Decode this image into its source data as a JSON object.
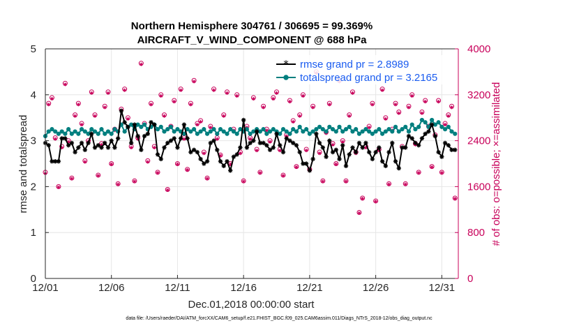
{
  "chart_data": {
    "type": "line",
    "title_line1": "Northern Hemisphere 304761 / 306695 = 99.369%",
    "title_line2": "AIRCRAFT_V_WIND_COMPONENT @ 688 hPa",
    "xlabel": "Dec.01,2018 00:00:00 start",
    "ylabel_left": "rmse and totalspread",
    "ylabel_right": "# of obs: o=possible; ×=assimilated",
    "footnote": "data file: /Users/raeder/DAI/ATM_forcXX/CAM6_setup/f.e21.FHIST_BGC.f09_025.CAM6assim.011/Diags_NTrS_2018-12/obs_diag_output.nc",
    "x_ticks": [
      "12/01",
      "12/06",
      "12/11",
      "12/16",
      "12/21",
      "12/26",
      "12/31"
    ],
    "x_tick_values": [
      0,
      5,
      10,
      15,
      20,
      25,
      30
    ],
    "xlim": [
      0,
      31.25
    ],
    "ylim_left": [
      0,
      5
    ],
    "y_ticks_left": [
      "0",
      "1",
      "2",
      "3",
      "4",
      "5"
    ],
    "ylim_right": [
      0,
      4000
    ],
    "y_ticks_right": [
      "0",
      "800",
      "1600",
      "2400",
      "3200",
      "4000"
    ],
    "grid": true,
    "legend": {
      "position": "top-right",
      "entries": [
        "rmse grand pr = 2.8989",
        "totalspread grand pr = 3.2165"
      ]
    },
    "colors": {
      "rmse": "#000000",
      "spread": "#007f7f",
      "obs": "#c8005a",
      "legend_text": "#1a5cf0"
    },
    "series": [
      {
        "name": "rmse",
        "x": [
          0.0,
          0.25,
          0.5,
          0.75,
          1.0,
          1.25,
          1.5,
          1.75,
          2.0,
          2.25,
          2.5,
          2.75,
          3.0,
          3.25,
          3.5,
          3.75,
          4.0,
          4.25,
          4.5,
          4.75,
          5.0,
          5.25,
          5.5,
          5.75,
          6.0,
          6.25,
          6.5,
          6.75,
          7.0,
          7.25,
          7.5,
          7.75,
          8.0,
          8.25,
          8.5,
          8.75,
          9.0,
          9.25,
          9.5,
          9.75,
          10.0,
          10.25,
          10.5,
          10.75,
          11.0,
          11.25,
          11.5,
          11.75,
          12.0,
          12.25,
          12.5,
          12.75,
          13.0,
          13.25,
          13.5,
          13.75,
          14.0,
          14.25,
          14.5,
          14.75,
          15.0,
          15.25,
          15.5,
          15.75,
          16.0,
          16.25,
          16.5,
          16.75,
          17.0,
          17.25,
          17.5,
          17.75,
          18.0,
          18.25,
          18.5,
          18.75,
          19.0,
          19.25,
          19.5,
          19.75,
          20.0,
          20.25,
          20.5,
          20.75,
          21.0,
          21.25,
          21.5,
          21.75,
          22.0,
          22.25,
          22.5,
          22.75,
          23.0,
          23.25,
          23.5,
          23.75,
          24.0,
          24.25,
          24.5,
          24.75,
          25.0,
          25.25,
          25.5,
          25.75,
          26.0,
          26.25,
          26.5,
          26.75,
          27.0,
          27.25,
          27.5,
          27.75,
          28.0,
          28.25,
          28.5,
          28.75,
          29.0,
          29.25,
          29.5,
          29.75,
          30.0,
          30.25,
          30.5,
          30.75,
          31.0
        ],
        "values": [
          2.95,
          2.9,
          2.55,
          2.55,
          2.55,
          3.05,
          3.05,
          2.9,
          2.95,
          2.75,
          2.85,
          2.95,
          2.8,
          2.95,
          3.15,
          2.85,
          2.9,
          2.85,
          2.95,
          2.85,
          3.0,
          2.85,
          3.05,
          3.65,
          3.4,
          3.3,
          2.95,
          3.35,
          3.1,
          2.8,
          3.1,
          3.15,
          3.4,
          3.35,
          2.7,
          2.6,
          2.85,
          2.95,
          3.0,
          3.05,
          2.85,
          3.05,
          3.35,
          3.05,
          2.75,
          2.8,
          2.75,
          2.6,
          2.5,
          2.55,
          2.95,
          3.0,
          2.8,
          2.55,
          2.45,
          2.55,
          2.35,
          2.65,
          2.7,
          2.85,
          3.45,
          2.85,
          2.95,
          3.0,
          3.2,
          2.95,
          2.95,
          2.9,
          2.8,
          2.85,
          3.15,
          2.9,
          2.75,
          3.05,
          3.0,
          2.95,
          2.9,
          2.75,
          2.5,
          2.5,
          2.35,
          2.6,
          3.15,
          2.95,
          2.85,
          2.65,
          3.0,
          2.75,
          2.8,
          2.6,
          2.9,
          2.45,
          2.7,
          2.85,
          2.75,
          2.95,
          2.85,
          2.95,
          2.75,
          2.6,
          2.75,
          2.85,
          2.55,
          2.45,
          2.75,
          2.95,
          2.55,
          2.4,
          2.85,
          2.85,
          3.1,
          3.05,
          2.95,
          2.9,
          3.05,
          3.15,
          3.2,
          3.35,
          3.1,
          2.75,
          2.65,
          2.95,
          2.9,
          2.8,
          2.8
        ],
        "marker": "*"
      },
      {
        "name": "totalspread",
        "x": [
          0.0,
          0.25,
          0.5,
          0.75,
          1.0,
          1.25,
          1.5,
          1.75,
          2.0,
          2.25,
          2.5,
          2.75,
          3.0,
          3.25,
          3.5,
          3.75,
          4.0,
          4.25,
          4.5,
          4.75,
          5.0,
          5.25,
          5.5,
          5.75,
          6.0,
          6.25,
          6.5,
          6.75,
          7.0,
          7.25,
          7.5,
          7.75,
          8.0,
          8.25,
          8.5,
          8.75,
          9.0,
          9.25,
          9.5,
          9.75,
          10.0,
          10.25,
          10.5,
          10.75,
          11.0,
          11.25,
          11.5,
          11.75,
          12.0,
          12.25,
          12.5,
          12.75,
          13.0,
          13.25,
          13.5,
          13.75,
          14.0,
          14.25,
          14.5,
          14.75,
          15.0,
          15.25,
          15.5,
          15.75,
          16.0,
          16.25,
          16.5,
          16.75,
          17.0,
          17.25,
          17.5,
          17.75,
          18.0,
          18.25,
          18.5,
          18.75,
          19.0,
          19.25,
          19.5,
          19.75,
          20.0,
          20.25,
          20.5,
          20.75,
          21.0,
          21.25,
          21.5,
          21.75,
          22.0,
          22.25,
          22.5,
          22.75,
          23.0,
          23.25,
          23.5,
          23.75,
          24.0,
          24.25,
          24.5,
          24.75,
          25.0,
          25.25,
          25.5,
          25.75,
          26.0,
          26.25,
          26.5,
          26.75,
          27.0,
          27.25,
          27.5,
          27.75,
          28.0,
          28.25,
          28.5,
          28.75,
          29.0,
          29.25,
          29.5,
          29.75,
          30.0,
          30.25,
          30.5,
          30.75,
          31.0
        ],
        "values": [
          3.1,
          3.2,
          3.25,
          3.2,
          3.15,
          3.2,
          3.15,
          3.25,
          3.15,
          3.2,
          3.15,
          3.25,
          3.2,
          3.15,
          3.25,
          3.2,
          3.15,
          3.25,
          3.15,
          3.2,
          3.15,
          3.25,
          3.2,
          3.35,
          3.2,
          3.3,
          3.35,
          3.25,
          3.35,
          3.3,
          3.35,
          3.25,
          3.3,
          3.35,
          3.25,
          3.3,
          3.2,
          3.25,
          3.3,
          3.2,
          3.25,
          3.2,
          3.15,
          3.25,
          3.2,
          3.25,
          3.15,
          3.2,
          3.25,
          3.15,
          3.2,
          3.25,
          3.15,
          3.25,
          3.2,
          3.15,
          3.25,
          3.2,
          3.15,
          3.25,
          3.2,
          3.25,
          3.15,
          3.2,
          3.25,
          3.2,
          3.25,
          3.15,
          3.2,
          3.25,
          3.2,
          3.15,
          3.25,
          3.2,
          3.15,
          3.25,
          3.2,
          3.3,
          3.2,
          3.25,
          3.15,
          3.2,
          3.25,
          3.3,
          3.25,
          3.2,
          3.3,
          3.25,
          3.2,
          3.3,
          3.2,
          3.25,
          3.3,
          3.2,
          3.25,
          3.15,
          3.2,
          3.25,
          3.2,
          3.15,
          3.2,
          3.25,
          3.15,
          3.2,
          3.25,
          3.2,
          3.3,
          3.2,
          3.25,
          3.3,
          3.2,
          3.35,
          3.25,
          3.3,
          3.45,
          3.4,
          3.3,
          3.45,
          3.35,
          3.4,
          3.3,
          3.25,
          3.3,
          3.2,
          3.15
        ],
        "marker": "o"
      }
    ],
    "obs_count": {
      "x": [
        0.0,
        0.25,
        0.5,
        0.75,
        1.0,
        1.25,
        1.5,
        1.75,
        2.0,
        2.25,
        2.5,
        2.75,
        3.0,
        3.25,
        3.5,
        3.75,
        4.0,
        4.25,
        4.5,
        4.75,
        5.0,
        5.25,
        5.5,
        5.75,
        6.0,
        6.25,
        6.5,
        6.75,
        7.0,
        7.25,
        7.5,
        7.75,
        8.0,
        8.25,
        8.5,
        8.75,
        9.0,
        9.25,
        9.5,
        9.75,
        10.0,
        10.25,
        10.5,
        10.75,
        11.0,
        11.25,
        11.5,
        11.75,
        12.0,
        12.25,
        12.5,
        12.75,
        13.0,
        13.25,
        13.5,
        13.75,
        14.0,
        14.25,
        14.5,
        14.75,
        15.0,
        15.25,
        15.5,
        15.75,
        16.0,
        16.25,
        16.5,
        16.75,
        17.0,
        17.25,
        17.5,
        17.75,
        18.0,
        18.25,
        18.5,
        18.75,
        19.0,
        19.25,
        19.5,
        19.75,
        20.0,
        20.25,
        20.5,
        20.75,
        21.0,
        21.25,
        21.5,
        21.75,
        22.0,
        22.25,
        22.5,
        22.75,
        23.0,
        23.25,
        23.5,
        23.75,
        24.0,
        24.25,
        24.5,
        24.75,
        25.0,
        25.25,
        25.5,
        25.75,
        26.0,
        26.25,
        26.5,
        26.75,
        27.0,
        27.25,
        27.5,
        27.75,
        28.0,
        28.25,
        28.5,
        28.75,
        29.0,
        29.25,
        29.5,
        29.75,
        30.0,
        30.25,
        30.5,
        30.75,
        31.0
      ],
      "possible": [
        1850,
        3050,
        3150,
        2450,
        1600,
        2300,
        3400,
        2400,
        1750,
        2850,
        3050,
        2700,
        2050,
        2400,
        3250,
        2850,
        1800,
        2350,
        3000,
        3250,
        2000,
        2600,
        1650,
        2950,
        3300,
        2800,
        2300,
        1700,
        2450,
        3750,
        2700,
        2050,
        3050,
        2300,
        1850,
        3200,
        2850,
        1550,
        2650,
        3100,
        2000,
        3300,
        2450,
        1900,
        3050,
        3450,
        2700,
        2750,
        2200,
        1750,
        2650,
        3300,
        2450,
        2150,
        2850,
        3250,
        2000,
        2600,
        3200,
        2200,
        1700,
        2650,
        2450,
        3150,
        2250,
        1850,
        3000,
        2600,
        2400,
        3150,
        3250,
        2250,
        1800,
        2500,
        3100,
        2750,
        1950,
        2850,
        3200,
        2250,
        1900,
        3000,
        3600,
        2200,
        1700,
        2550,
        3050,
        2350,
        2000,
        3450,
        2400,
        1700,
        2850,
        3250,
        2200,
        1150,
        1400,
        2300,
        2650,
        3050,
        1350,
        2250,
        3300,
        2800,
        1650,
        2600,
        3050,
        2900,
        2300,
        1650,
        3000,
        3200,
        2350,
        1850,
        2900,
        3100,
        2650,
        1950,
        2500,
        3100,
        1850,
        2700,
        2850,
        3000,
        1400
      ],
      "assimilated": [
        1830,
        3030,
        3130,
        2430,
        1590,
        2280,
        3380,
        2380,
        1740,
        2830,
        3030,
        2680,
        2030,
        2380,
        3230,
        2830,
        1790,
        2330,
        2980,
        3230,
        1990,
        2580,
        1640,
        2930,
        3280,
        2780,
        2280,
        1690,
        2430,
        3730,
        2680,
        2030,
        3030,
        2280,
        1840,
        3180,
        2830,
        1540,
        2630,
        3080,
        1990,
        3280,
        2430,
        1890,
        3030,
        3430,
        2680,
        2730,
        2180,
        1740,
        2630,
        3280,
        2430,
        2140,
        2830,
        3230,
        1990,
        2580,
        3180,
        2180,
        1690,
        2630,
        2430,
        3130,
        2230,
        1840,
        2980,
        2580,
        2380,
        3130,
        3230,
        2230,
        1790,
        2480,
        3080,
        2730,
        1940,
        2830,
        3180,
        2230,
        1890,
        2980,
        3580,
        2180,
        1690,
        2530,
        3030,
        2330,
        1990,
        3430,
        2380,
        1690,
        2830,
        3230,
        2180,
        1140,
        1390,
        2280,
        2630,
        3030,
        1340,
        2230,
        3280,
        2780,
        1640,
        2580,
        3030,
        2880,
        2280,
        1640,
        2980,
        3180,
        2330,
        1840,
        2880,
        3080,
        2630,
        1940,
        2480,
        3080,
        1840,
        2680,
        2830,
        2980,
        1390
      ]
    }
  }
}
